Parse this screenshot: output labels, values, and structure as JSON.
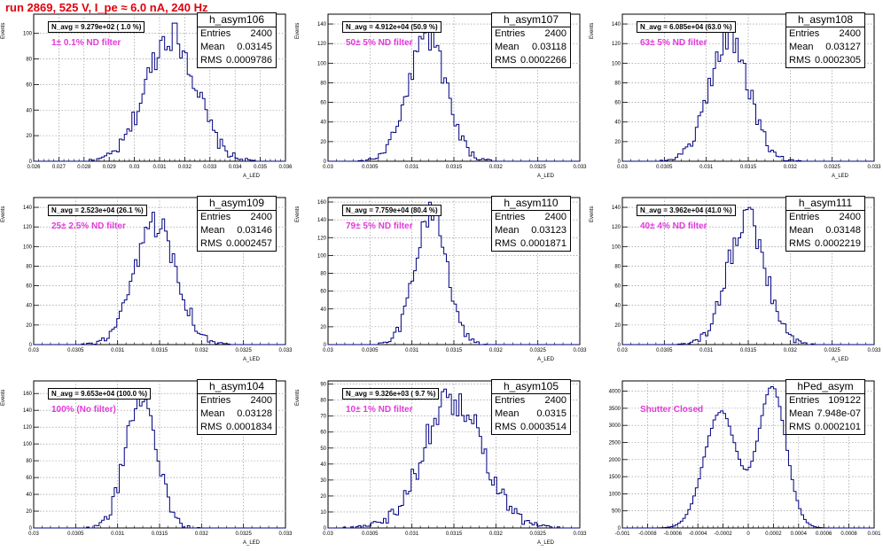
{
  "header": "run 2869,   525 V, I_pe ≈ 6.0 nA, 240 Hz",
  "chart_data": [
    {
      "type": "bar",
      "name": "h_asym106",
      "entries": "2400",
      "mean": "0.03145",
      "rms": "0.0009786",
      "navg": "N_avg = 9.279e+02 ( 1.0 %)",
      "filter": "1± 0.1% ND filter",
      "ylabel": "Events",
      "xlabel": "A_LED",
      "xlim": [
        0.026,
        0.036
      ],
      "ylim": [
        0,
        115
      ],
      "peak": 108,
      "xticks": [
        "0.026",
        "0.027",
        "0.028",
        "0.029",
        "0.03",
        "0.031",
        "0.032",
        "0.033",
        "0.034",
        "0.035",
        "0.036"
      ],
      "yticks": [
        0,
        20,
        40,
        60,
        80,
        100
      ]
    },
    {
      "type": "bar",
      "name": "h_asym107",
      "entries": "2400",
      "mean": "0.03118",
      "rms": "0.0002266",
      "navg": "N_avg = 4.912e+04 (50.9 %)",
      "filter": "50± 5% ND filter",
      "ylabel": "Events",
      "xlabel": "A_LED",
      "xlim": [
        0.03,
        0.033
      ],
      "ylim": [
        0,
        150
      ],
      "peak": 138,
      "xticks": [
        "0.03",
        "0.0305",
        "0.031",
        "0.0315",
        "0.032",
        "0.0325",
        "0.033"
      ],
      "yticks": [
        0,
        20,
        40,
        60,
        80,
        100,
        120,
        140
      ]
    },
    {
      "type": "bar",
      "name": "h_asym108",
      "entries": "2400",
      "mean": "0.03127",
      "rms": "0.0002305",
      "navg": "N_avg = 6.085e+04 (63.0 %)",
      "filter": "63± 5% ND filter",
      "ylabel": "Events",
      "xlabel": "A_LED",
      "xlim": [
        0.03,
        0.033
      ],
      "ylim": [
        0,
        150
      ],
      "peak": 138,
      "xticks": [
        "0.03",
        "0.0305",
        "0.031",
        "0.0315",
        "0.032",
        "0.0325",
        "0.033"
      ],
      "yticks": [
        0,
        20,
        40,
        60,
        80,
        100,
        120,
        140
      ]
    },
    {
      "type": "bar",
      "name": "h_asym109",
      "entries": "2400",
      "mean": "0.03146",
      "rms": "0.0002457",
      "navg": "N_avg = 2.523e+04 (26.1 %)",
      "filter": "25± 2.5% ND filter",
      "ylabel": "Events",
      "xlabel": "A_LED",
      "xlim": [
        0.03,
        0.033
      ],
      "ylim": [
        0,
        150
      ],
      "peak": 135,
      "xticks": [
        "0.03",
        "0.0305",
        "0.031",
        "0.0315",
        "0.032",
        "0.0325",
        "0.033"
      ],
      "yticks": [
        0,
        20,
        40,
        60,
        80,
        100,
        120,
        140
      ]
    },
    {
      "type": "bar",
      "name": "h_asym110",
      "entries": "2400",
      "mean": "0.03123",
      "rms": "0.0001871",
      "navg": "N_avg = 7.759e+04 (80.4 %)",
      "filter": "79± 5% ND filter",
      "ylabel": "Events",
      "xlabel": "A_LED",
      "xlim": [
        0.03,
        0.033
      ],
      "ylim": [
        0,
        165
      ],
      "peak": 160,
      "xticks": [
        "0.03",
        "0.0305",
        "0.031",
        "0.0315",
        "0.032",
        "0.0325",
        "0.033"
      ],
      "yticks": [
        0,
        20,
        40,
        60,
        80,
        100,
        120,
        140,
        160
      ]
    },
    {
      "type": "bar",
      "name": "h_asym111",
      "entries": "2400",
      "mean": "0.03148",
      "rms": "0.0002219",
      "navg": "N_avg = 3.962e+04 (41.0 %)",
      "filter": "40± 4% ND filter",
      "ylabel": "Events",
      "xlabel": "A_LED",
      "xlim": [
        0.03,
        0.033
      ],
      "ylim": [
        0,
        150
      ],
      "peak": 140,
      "xticks": [
        "0.03",
        "0.0305",
        "0.031",
        "0.0315",
        "0.032",
        "0.0325",
        "0.033"
      ],
      "yticks": [
        0,
        20,
        40,
        60,
        80,
        100,
        120,
        140
      ]
    },
    {
      "type": "bar",
      "name": "h_asym104",
      "entries": "2400",
      "mean": "0.03128",
      "rms": "0.0001834",
      "navg": "N_avg = 9.653e+04 (100.0 %)",
      "filter": "100% (No filter)",
      "ylabel": "Events",
      "xlabel": "A_LED",
      "xlim": [
        0.03,
        0.033
      ],
      "ylim": [
        0,
        175
      ],
      "peak": 170,
      "xticks": [
        "0.03",
        "0.0305",
        "0.031",
        "0.0315",
        "0.032",
        "0.0325",
        "0.033"
      ],
      "yticks": [
        0,
        20,
        40,
        60,
        80,
        100,
        120,
        140,
        160
      ]
    },
    {
      "type": "bar",
      "name": "h_asym105",
      "entries": "2400",
      "mean": "0.0315",
      "rms": "0.0003514",
      "navg": "N_avg = 9.326e+03 ( 9.7 %)",
      "filter": "10± 1% ND filter",
      "ylabel": "Events",
      "xlabel": "A_LED",
      "xlim": [
        0.03,
        0.033
      ],
      "ylim": [
        0,
        92
      ],
      "peak": 88,
      "xticks": [
        "0.03",
        "0.0305",
        "0.031",
        "0.0315",
        "0.032",
        "0.0325",
        "0.033"
      ],
      "yticks": [
        0,
        10,
        20,
        30,
        40,
        50,
        60,
        70,
        80,
        90
      ]
    },
    {
      "type": "bar",
      "name": "hPed_asym",
      "entries": "109122",
      "mean": "7.948e-07",
      "rms": "0.0002101",
      "navg": "",
      "filter": "Shutter Closed",
      "ylabel": "",
      "xlabel": "",
      "xlim": [
        -0.001,
        0.001
      ],
      "ylim": [
        0,
        4300
      ],
      "peak": 4150,
      "xticks": [
        "-0.001",
        "-0.0008",
        "-0.0006",
        "-0.0004",
        "-0.0002",
        "0",
        "0.0002",
        "0.0004",
        "0.0006",
        "0.0008",
        "0.001"
      ],
      "yticks": [
        0,
        500,
        1000,
        1500,
        2000,
        2500,
        3000,
        3500,
        4000
      ]
    }
  ]
}
